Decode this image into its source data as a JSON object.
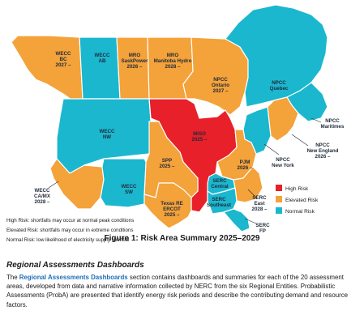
{
  "colors": {
    "high": "#e8202a",
    "elevated": "#f4a23a",
    "normal": "#1bb7cf",
    "ocean": "#ffffff",
    "border": "#ffffff"
  },
  "regions": [
    {
      "id": "wecc-bc",
      "lines": [
        "WECC",
        "BC",
        "2027 –"
      ],
      "risk": "elevated"
    },
    {
      "id": "wecc-ab",
      "lines": [
        "WECC",
        "AB"
      ],
      "risk": "normal"
    },
    {
      "id": "mro-saskpower",
      "lines": [
        "MRO",
        "SaskPower",
        "2026 –"
      ],
      "risk": "elevated"
    },
    {
      "id": "mro-manitoba",
      "lines": [
        "MRO",
        "Manitoba Hydro",
        "2028 –"
      ],
      "risk": "elevated"
    },
    {
      "id": "npcc-ontario",
      "lines": [
        "NPCC",
        "Ontario",
        "2027 –"
      ],
      "risk": "elevated"
    },
    {
      "id": "npcc-quebec",
      "lines": [
        "NPCC",
        "Quebec"
      ],
      "risk": "normal"
    },
    {
      "id": "npcc-maritimes",
      "lines": [
        "NPCC",
        "Maritimes"
      ],
      "risk": "normal"
    },
    {
      "id": "wecc-nw",
      "lines": [
        "WECC",
        "NW"
      ],
      "risk": "normal"
    },
    {
      "id": "miso",
      "lines": [
        "MISO",
        "2025 –"
      ],
      "risk": "high"
    },
    {
      "id": "npcc-new-england",
      "lines": [
        "NPCC",
        "New England",
        "2026 –"
      ],
      "risk": "elevated"
    },
    {
      "id": "npcc-new-york",
      "lines": [
        "NPCC",
        "New York"
      ],
      "risk": "normal"
    },
    {
      "id": "pjm",
      "lines": [
        "PJM",
        "2026 –"
      ],
      "risk": "elevated"
    },
    {
      "id": "spp",
      "lines": [
        "SPP",
        "2025 –"
      ],
      "risk": "elevated"
    },
    {
      "id": "wecc-ca-mx",
      "lines": [
        "WECC",
        "CA/MX",
        "2028 –"
      ],
      "risk": "elevated"
    },
    {
      "id": "wecc-sw",
      "lines": [
        "WECC",
        "SW"
      ],
      "risk": "normal"
    },
    {
      "id": "serc-central",
      "lines": [
        "SERC",
        "Central"
      ],
      "risk": "normal"
    },
    {
      "id": "serc-east",
      "lines": [
        "SERC",
        "East",
        "2028 –"
      ],
      "risk": "elevated"
    },
    {
      "id": "serc-southeast",
      "lines": [
        "SERC",
        "Southeast"
      ],
      "risk": "normal"
    },
    {
      "id": "texas-re-ercot",
      "lines": [
        "Texas RE",
        "ERCOT",
        "2025 –"
      ],
      "risk": "elevated"
    },
    {
      "id": "serc-fp",
      "lines": [
        "SERC",
        "FP"
      ],
      "risk": "normal"
    }
  ],
  "legend": [
    {
      "key": "high",
      "label": "High Risk"
    },
    {
      "key": "elevated",
      "label": "Elevated Risk"
    },
    {
      "key": "normal",
      "label": "Normal Risk"
    }
  ],
  "risk_descriptions": [
    "High Risk: shortfalls may occur at normal peak conditions",
    "Elevated Risk: shortfalls may occur in extreme conditions",
    "Normal Risk: low likelihood of electricity supply shortfall"
  ],
  "caption": "Figure 1: Risk Area Summary 2025–2029",
  "section_heading": "Regional Assessments Dashboards",
  "paragraph": {
    "before": "The ",
    "link": "Regional Assessments Dashboards",
    "after": " section contains dashboards and summaries for each of the 20 assessment areas, developed from data and narrative information collected by NERC from the six Regional Entities. Probabilistic Assessments (ProbA) are presented that identify energy risk periods and describe the contributing demand and resource factors."
  }
}
